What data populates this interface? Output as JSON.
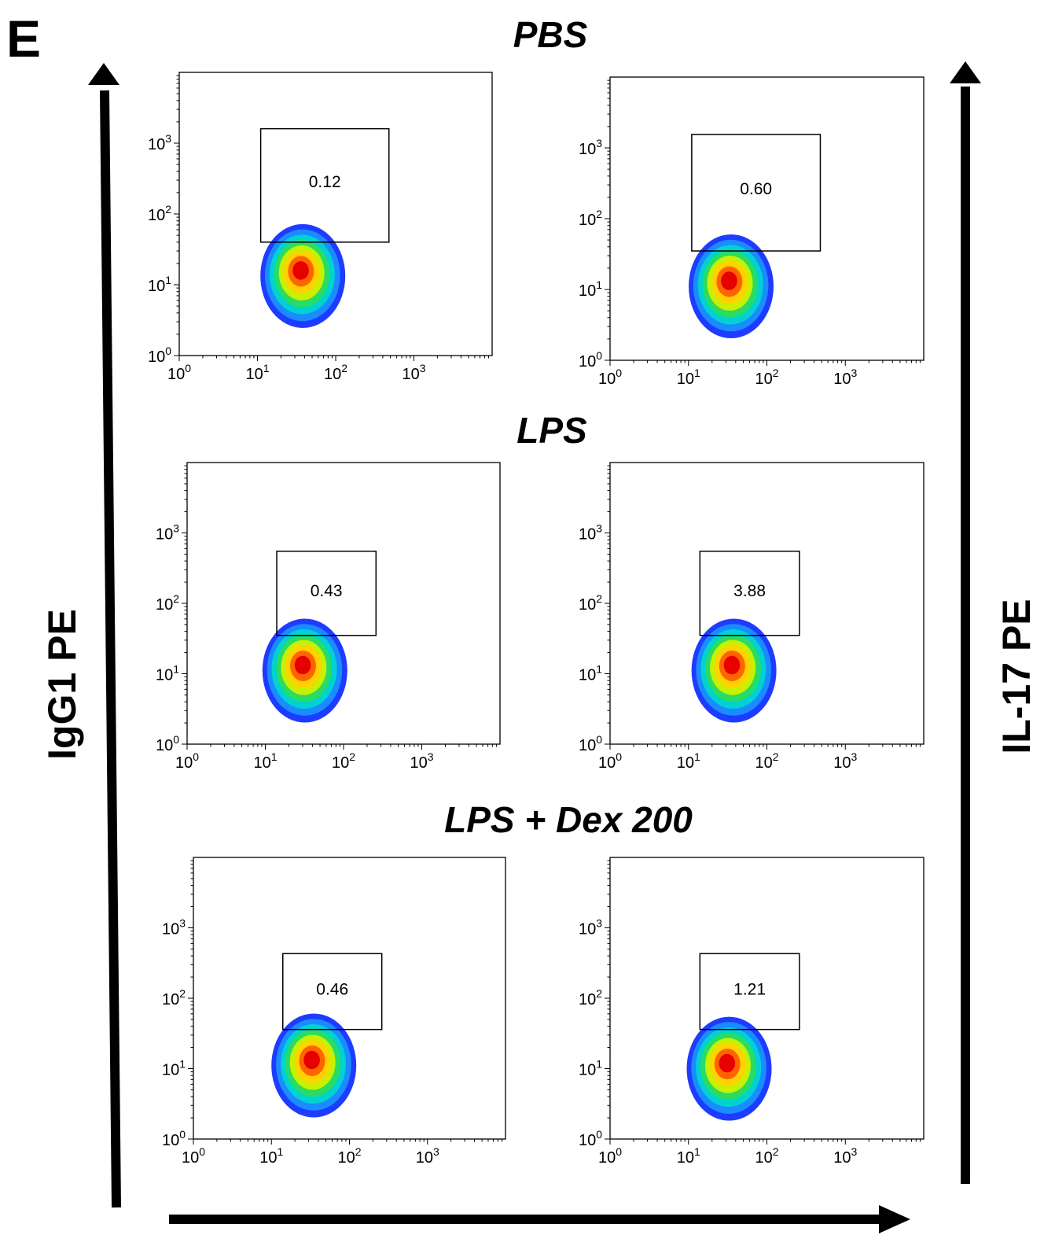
{
  "panel_label": "E",
  "left_axis_label": "IgG1  PE",
  "right_axis_label": "IL-17 PE",
  "colors": {
    "density": [
      "#1e3cff",
      "#1a8cff",
      "#00d2d2",
      "#28dc64",
      "#c8f000",
      "#ffd200",
      "#ff6400",
      "#e60000"
    ],
    "axes": "#000000"
  },
  "chart_data": {
    "type": "scatter",
    "plot_kind": "flow cytometry density plots (log-log)",
    "axis_scale": "log",
    "xlim": [
      1,
      10000
    ],
    "ylim": [
      1,
      10000
    ],
    "tick_labels": [
      {
        "base": "10",
        "exp": "0"
      },
      {
        "base": "10",
        "exp": "1"
      },
      {
        "base": "10",
        "exp": "2"
      },
      {
        "base": "10",
        "exp": "3"
      }
    ],
    "rows": [
      {
        "title": "PBS",
        "plots": [
          {
            "stain": "IgG1 PE",
            "gate_percent": "0.12",
            "gate_x": [
              11,
              480
            ],
            "gate_y": [
              40,
              1600
            ],
            "population_center": [
              38,
              12
            ]
          },
          {
            "stain": "IL-17 PE",
            "gate_percent": "0.60",
            "gate_x": [
              11,
              480
            ],
            "gate_y": [
              35,
              1550
            ],
            "population_center": [
              35,
              10
            ]
          }
        ]
      },
      {
        "title": "LPS",
        "plots": [
          {
            "stain": "IgG1 PE",
            "gate_percent": "0.43",
            "gate_x": [
              14,
              260
            ],
            "gate_y": [
              35,
              550
            ],
            "population_center": [
              32,
              10
            ]
          },
          {
            "stain": "IL-17 PE",
            "gate_percent": "3.88",
            "gate_x": [
              14,
              260
            ],
            "gate_y": [
              35,
              550
            ],
            "population_center": [
              38,
              10
            ]
          }
        ]
      },
      {
        "title": "LPS + Dex 200",
        "plots": [
          {
            "stain": "IgG1 PE",
            "gate_percent": "0.46",
            "gate_x": [
              14,
              260
            ],
            "gate_y": [
              36,
              430
            ],
            "population_center": [
              35,
              10
            ]
          },
          {
            "stain": "IL-17 PE",
            "gate_percent": "1.21",
            "gate_x": [
              14,
              260
            ],
            "gate_y": [
              36,
              430
            ],
            "population_center": [
              33,
              9
            ]
          }
        ]
      }
    ],
    "grid": false,
    "legend": "none"
  }
}
